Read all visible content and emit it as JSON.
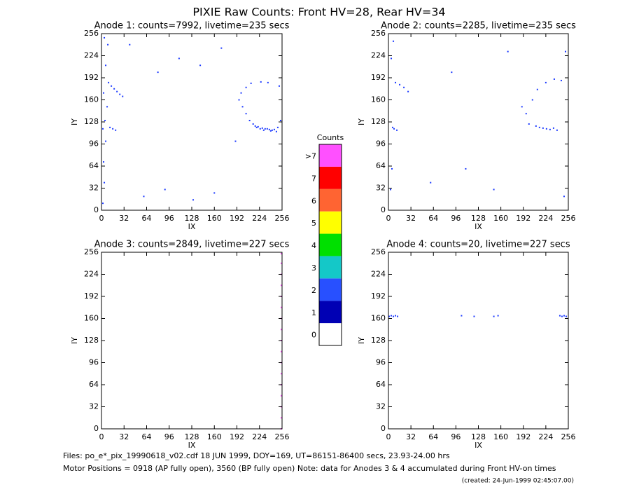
{
  "title": "PIXIE Raw Counts:  Front HV=28, Rear HV=34",
  "chart_data": [
    {
      "type": "scatter",
      "title": "Anode 1: counts=7992, livetime=235 secs",
      "xlabel": "IX",
      "ylabel": "IY",
      "xlim": [
        0,
        256
      ],
      "ylim": [
        0,
        256
      ],
      "xticks": [
        0,
        32,
        64,
        96,
        128,
        160,
        192,
        224,
        256
      ],
      "yticks": [
        0,
        32,
        64,
        96,
        128,
        160,
        192,
        224,
        256
      ],
      "color": "#1e3cff",
      "x": [
        2,
        4,
        3,
        6,
        2,
        5,
        8,
        3,
        10,
        14,
        18,
        22,
        26,
        30,
        12,
        16,
        20,
        6,
        9,
        4,
        200,
        205,
        210,
        215,
        220,
        225,
        230,
        235,
        240,
        245,
        250,
        218,
        222,
        228,
        232,
        238,
        242,
        248,
        195,
        198,
        205,
        212,
        226,
        236,
        252,
        254,
        60,
        90,
        130,
        160,
        40,
        110,
        170,
        80,
        140,
        190
      ],
      "y": [
        10,
        40,
        70,
        100,
        118,
        130,
        150,
        170,
        185,
        180,
        176,
        172,
        168,
        165,
        120,
        118,
        116,
        210,
        240,
        250,
        150,
        140,
        130,
        125,
        120,
        118,
        116,
        118,
        115,
        117,
        120,
        122,
        121,
        119,
        118,
        117,
        116,
        114,
        160,
        170,
        178,
        184,
        186,
        185,
        180,
        130,
        20,
        30,
        15,
        25,
        240,
        220,
        235,
        200,
        210,
        100
      ]
    },
    {
      "type": "scatter",
      "title": "Anode 2: counts=2285, livetime=235 secs",
      "xlabel": "IX",
      "ylabel": "IY",
      "xlim": [
        0,
        256
      ],
      "ylim": [
        0,
        256
      ],
      "xticks": [
        0,
        32,
        64,
        96,
        128,
        160,
        192,
        224,
        256
      ],
      "yticks": [
        0,
        32,
        64,
        96,
        128,
        160,
        192,
        224,
        256
      ],
      "color": "#1e3cff",
      "x": [
        3,
        5,
        8,
        12,
        6,
        10,
        16,
        22,
        28,
        4,
        7,
        200,
        210,
        215,
        220,
        225,
        230,
        235,
        240,
        205,
        212,
        224,
        236,
        246,
        190,
        196,
        252,
        250,
        60,
        110,
        150,
        90,
        170
      ],
      "y": [
        30,
        60,
        118,
        116,
        120,
        185,
        182,
        178,
        172,
        220,
        245,
        125,
        122,
        120,
        119,
        118,
        117,
        119,
        116,
        160,
        175,
        185,
        190,
        188,
        150,
        140,
        230,
        20,
        40,
        60,
        30,
        200,
        230
      ]
    },
    {
      "type": "scatter",
      "title": "Anode 3: counts=2849, livetime=227 secs",
      "xlabel": "IX",
      "ylabel": "IY",
      "xlim": [
        0,
        256
      ],
      "ylim": [
        0,
        256
      ],
      "xticks": [
        0,
        32,
        64,
        96,
        128,
        160,
        192,
        224,
        256
      ],
      "yticks": [
        0,
        32,
        64,
        96,
        128,
        160,
        192,
        224,
        256
      ],
      "color": "#ff50ff",
      "x": [
        255,
        255,
        255,
        255,
        255,
        255,
        255,
        255,
        255,
        255,
        255,
        255,
        255,
        255,
        255,
        255,
        255
      ],
      "y": [
        0,
        16,
        32,
        48,
        64,
        80,
        96,
        112,
        128,
        144,
        160,
        176,
        192,
        208,
        224,
        240,
        254
      ]
    },
    {
      "type": "scatter",
      "title": "Anode 4: counts=20, livetime=227 secs",
      "xlabel": "IX",
      "ylabel": "IY",
      "xlim": [
        0,
        256
      ],
      "ylim": [
        0,
        256
      ],
      "xticks": [
        0,
        32,
        64,
        96,
        128,
        160,
        192,
        224,
        256
      ],
      "yticks": [
        0,
        32,
        64,
        96,
        128,
        160,
        192,
        224,
        256
      ],
      "color": "#1e3cff",
      "x": [
        1,
        4,
        7,
        10,
        13,
        104,
        122,
        150,
        156,
        244,
        247,
        250,
        253
      ],
      "y": [
        163,
        164,
        163,
        164,
        163,
        164,
        163,
        163,
        164,
        164,
        163,
        164,
        163
      ]
    }
  ],
  "colorbar": {
    "title": "Counts",
    "ticks": [
      0,
      1,
      2,
      3,
      4,
      5,
      6,
      7,
      {
        "value": 8,
        "label": ">7"
      }
    ],
    "colors": [
      "#ffffff",
      "#0000b4",
      "#2850ff",
      "#14c8c8",
      "#00e000",
      "#ffff00",
      "#ff6432",
      "#ff0000",
      "#ff50ff"
    ]
  },
  "footer": [
    "Files: po_e*_pix_19990618_v02.cdf    18 JUN 1999, DOY=169, UT=86151-86400 secs, 23.93-24.00 hrs",
    "Motor Positions = 0918 (AP fully open), 3560 (BP fully open)    Note: data for Anodes 3 & 4 accumulated during Front HV-on times",
    "(created: 24-Jun-1999 02:45:07.00)"
  ]
}
